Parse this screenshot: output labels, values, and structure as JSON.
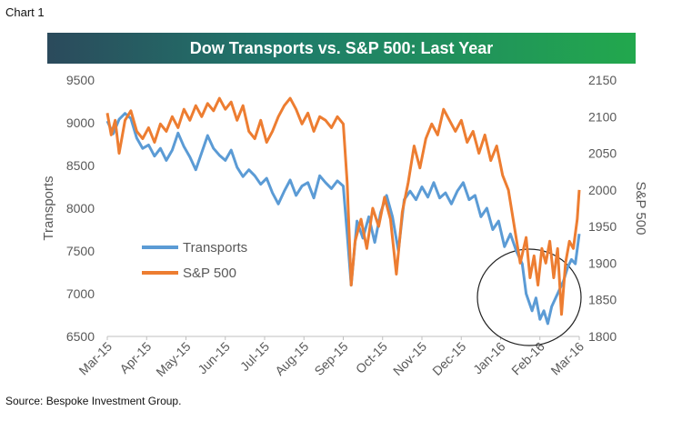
{
  "header": {
    "chart_label": "Chart 1"
  },
  "footer": {
    "source": "Source: Bespoke Investment Group."
  },
  "chart_data": {
    "type": "line",
    "title": "Dow Transports vs. S&P 500: Last Year",
    "ylabel": "Transports",
    "y2label": "S&P 500",
    "ylim": [
      6500,
      9500
    ],
    "y2lim": [
      1800,
      2150
    ],
    "yticks": [
      6500,
      7000,
      7500,
      8000,
      8500,
      9000,
      9500
    ],
    "y2ticks": [
      1800,
      1850,
      1900,
      1950,
      2000,
      2050,
      2100,
      2150
    ],
    "xticks": [
      "Mar-15",
      "Apr-15",
      "May-15",
      "Jun-15",
      "Jul-15",
      "Aug-15",
      "Sep-15",
      "Oct-15",
      "Nov-15",
      "Dec-15",
      "Jan-16",
      "Feb-16",
      "Mar-16"
    ],
    "xlim": [
      0,
      12
    ],
    "legend": "left-middle",
    "grid": false,
    "annotation": "circle around Feb-16 lows",
    "series": [
      {
        "name": "Transports",
        "color": "#5b9bd5",
        "axis": "left",
        "points": [
          [
            0.0,
            9020
          ],
          [
            0.15,
            8870
          ],
          [
            0.3,
            9040
          ],
          [
            0.45,
            9110
          ],
          [
            0.6,
            9050
          ],
          [
            0.75,
            8820
          ],
          [
            0.9,
            8700
          ],
          [
            1.05,
            8740
          ],
          [
            1.2,
            8610
          ],
          [
            1.35,
            8700
          ],
          [
            1.5,
            8560
          ],
          [
            1.65,
            8680
          ],
          [
            1.8,
            8880
          ],
          [
            1.95,
            8720
          ],
          [
            2.1,
            8600
          ],
          [
            2.25,
            8450
          ],
          [
            2.4,
            8650
          ],
          [
            2.55,
            8850
          ],
          [
            2.7,
            8700
          ],
          [
            2.85,
            8620
          ],
          [
            3.0,
            8560
          ],
          [
            3.15,
            8680
          ],
          [
            3.3,
            8480
          ],
          [
            3.45,
            8370
          ],
          [
            3.6,
            8450
          ],
          [
            3.75,
            8380
          ],
          [
            3.9,
            8280
          ],
          [
            4.05,
            8350
          ],
          [
            4.2,
            8180
          ],
          [
            4.35,
            8050
          ],
          [
            4.5,
            8200
          ],
          [
            4.65,
            8330
          ],
          [
            4.8,
            8150
          ],
          [
            4.95,
            8260
          ],
          [
            5.1,
            8300
          ],
          [
            5.25,
            8120
          ],
          [
            5.4,
            8380
          ],
          [
            5.55,
            8300
          ],
          [
            5.7,
            8230
          ],
          [
            5.85,
            8320
          ],
          [
            6.0,
            8260
          ],
          [
            6.1,
            7700
          ],
          [
            6.2,
            7100
          ],
          [
            6.35,
            7850
          ],
          [
            6.5,
            7650
          ],
          [
            6.65,
            7900
          ],
          [
            6.8,
            7600
          ],
          [
            6.95,
            7950
          ],
          [
            7.1,
            8150
          ],
          [
            7.25,
            7900
          ],
          [
            7.4,
            7500
          ],
          [
            7.55,
            8100
          ],
          [
            7.7,
            8200
          ],
          [
            7.85,
            8100
          ],
          [
            8.0,
            8250
          ],
          [
            8.15,
            8130
          ],
          [
            8.3,
            8300
          ],
          [
            8.45,
            8120
          ],
          [
            8.6,
            8180
          ],
          [
            8.75,
            8050
          ],
          [
            8.9,
            8200
          ],
          [
            9.05,
            8300
          ],
          [
            9.2,
            8100
          ],
          [
            9.35,
            8150
          ],
          [
            9.5,
            7900
          ],
          [
            9.65,
            8000
          ],
          [
            9.8,
            7750
          ],
          [
            9.95,
            7850
          ],
          [
            10.1,
            7550
          ],
          [
            10.25,
            7700
          ],
          [
            10.4,
            7500
          ],
          [
            10.55,
            7350
          ],
          [
            10.65,
            7000
          ],
          [
            10.8,
            6800
          ],
          [
            10.9,
            6950
          ],
          [
            11.0,
            6700
          ],
          [
            11.1,
            6800
          ],
          [
            11.2,
            6650
          ],
          [
            11.3,
            6850
          ],
          [
            11.4,
            6950
          ],
          [
            11.5,
            7050
          ],
          [
            11.6,
            7150
          ],
          [
            11.7,
            7300
          ],
          [
            11.8,
            7400
          ],
          [
            11.9,
            7350
          ],
          [
            12.0,
            7700
          ]
        ]
      },
      {
        "name": "S&P 500",
        "color": "#ed7d31",
        "axis": "right",
        "points": [
          [
            0.0,
            2105
          ],
          [
            0.1,
            2075
          ],
          [
            0.2,
            2095
          ],
          [
            0.3,
            2050
          ],
          [
            0.45,
            2095
          ],
          [
            0.6,
            2108
          ],
          [
            0.75,
            2080
          ],
          [
            0.9,
            2070
          ],
          [
            1.05,
            2085
          ],
          [
            1.2,
            2065
          ],
          [
            1.35,
            2090
          ],
          [
            1.5,
            2080
          ],
          [
            1.65,
            2100
          ],
          [
            1.8,
            2085
          ],
          [
            1.95,
            2110
          ],
          [
            2.1,
            2095
          ],
          [
            2.25,
            2115
          ],
          [
            2.4,
            2100
          ],
          [
            2.55,
            2118
          ],
          [
            2.7,
            2108
          ],
          [
            2.85,
            2125
          ],
          [
            3.0,
            2110
          ],
          [
            3.15,
            2120
          ],
          [
            3.3,
            2095
          ],
          [
            3.45,
            2115
          ],
          [
            3.6,
            2080
          ],
          [
            3.75,
            2070
          ],
          [
            3.9,
            2095
          ],
          [
            4.05,
            2065
          ],
          [
            4.2,
            2080
          ],
          [
            4.35,
            2100
          ],
          [
            4.5,
            2115
          ],
          [
            4.65,
            2125
          ],
          [
            4.8,
            2110
          ],
          [
            4.95,
            2090
          ],
          [
            5.1,
            2105
          ],
          [
            5.25,
            2080
          ],
          [
            5.4,
            2100
          ],
          [
            5.55,
            2095
          ],
          [
            5.7,
            2085
          ],
          [
            5.85,
            2100
          ],
          [
            6.0,
            2090
          ],
          [
            6.1,
            2010
          ],
          [
            6.2,
            1870
          ],
          [
            6.3,
            1930
          ],
          [
            6.45,
            1960
          ],
          [
            6.6,
            1920
          ],
          [
            6.75,
            1975
          ],
          [
            6.9,
            1950
          ],
          [
            7.05,
            1990
          ],
          [
            7.2,
            1960
          ],
          [
            7.35,
            1885
          ],
          [
            7.5,
            1970
          ],
          [
            7.65,
            2010
          ],
          [
            7.8,
            2060
          ],
          [
            7.95,
            2030
          ],
          [
            8.1,
            2070
          ],
          [
            8.25,
            2090
          ],
          [
            8.4,
            2075
          ],
          [
            8.55,
            2110
          ],
          [
            8.7,
            2095
          ],
          [
            8.85,
            2080
          ],
          [
            9.0,
            2095
          ],
          [
            9.15,
            2065
          ],
          [
            9.3,
            2080
          ],
          [
            9.45,
            2050
          ],
          [
            9.6,
            2075
          ],
          [
            9.75,
            2040
          ],
          [
            9.9,
            2060
          ],
          [
            10.05,
            2020
          ],
          [
            10.2,
            2000
          ],
          [
            10.35,
            1950
          ],
          [
            10.5,
            1900
          ],
          [
            10.65,
            1935
          ],
          [
            10.75,
            1880
          ],
          [
            10.85,
            1910
          ],
          [
            10.95,
            1870
          ],
          [
            11.05,
            1920
          ],
          [
            11.15,
            1900
          ],
          [
            11.25,
            1930
          ],
          [
            11.35,
            1880
          ],
          [
            11.45,
            1920
          ],
          [
            11.55,
            1830
          ],
          [
            11.65,
            1900
          ],
          [
            11.75,
            1930
          ],
          [
            11.85,
            1920
          ],
          [
            11.95,
            1960
          ],
          [
            12.0,
            2000
          ]
        ]
      }
    ]
  }
}
